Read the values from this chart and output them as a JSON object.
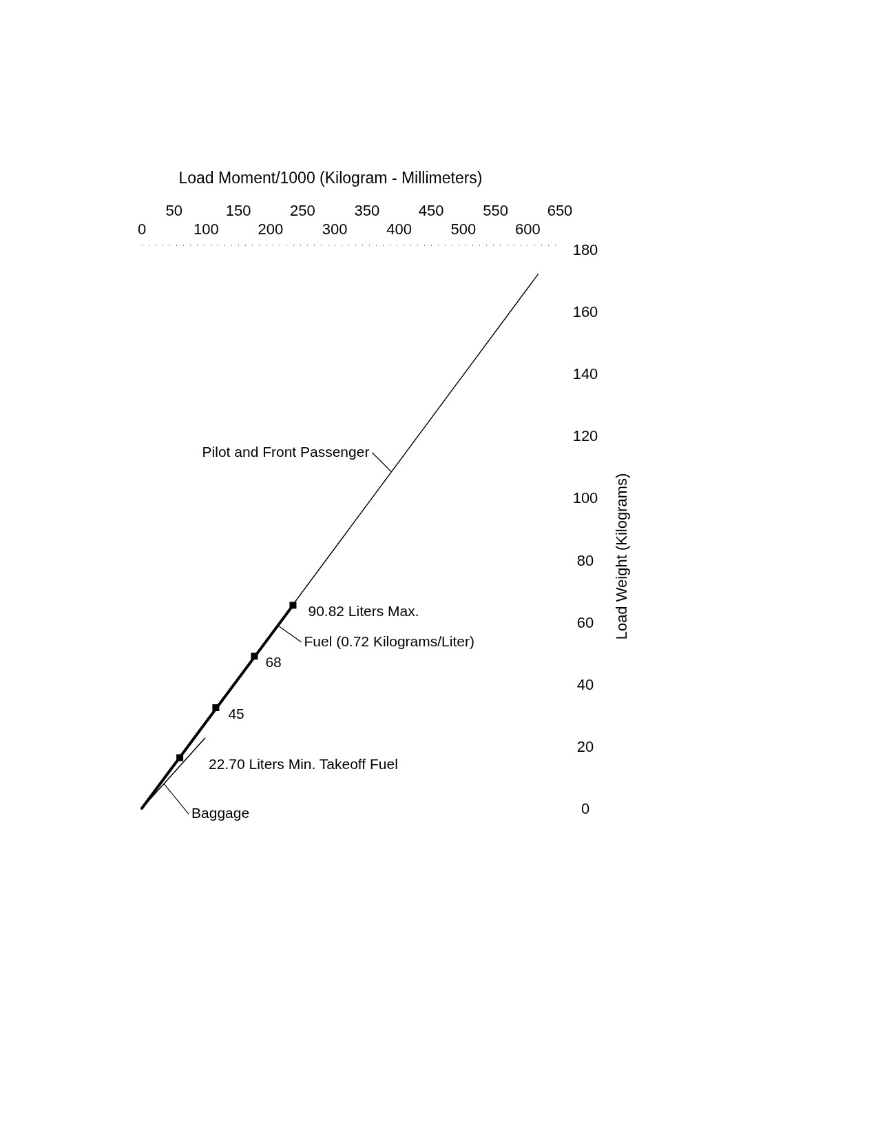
{
  "chart_data": {
    "type": "line",
    "xlabel": "Load Moment/1000 (Kilogram - Millimeters)",
    "ylabel": "Load Weight (Kilograms)",
    "xlim": [
      0,
      650
    ],
    "xticks": [
      0,
      100,
      200,
      300,
      400,
      500,
      600
    ],
    "x2lim": [
      0,
      650
    ],
    "x2ticks": [
      50,
      150,
      250,
      350,
      450,
      550,
      650
    ],
    "ylim": [
      0,
      180
    ],
    "yticks": [
      0,
      20,
      40,
      60,
      80,
      100,
      120,
      140,
      160,
      180
    ],
    "series": [
      {
        "name": "Pilot and Front Passenger",
        "type": "line",
        "color": "#000000",
        "x": [
          0,
          616
        ],
        "values": [
          0,
          172
        ]
      },
      {
        "name": "Fuel (0.72 Kilograms/Liter)",
        "type": "line",
        "color": "#000000",
        "x": [
          0,
          235
        ],
        "values": [
          0,
          65.4
        ]
      },
      {
        "name": "Baggage",
        "type": "line",
        "color": "#000000",
        "x": [
          0,
          98
        ],
        "values": [
          0,
          22.6
        ]
      },
      {
        "type": "scatter",
        "color": "#000000",
        "marker": "square",
        "x": [
          59,
          115,
          175,
          235
        ],
        "values": [
          16.3,
          32.4,
          49,
          65.4
        ]
      }
    ],
    "annotations": [
      {
        "text": "22.70 Liters Min. Takeoff Fuel",
        "x": 59,
        "y": 16.3
      },
      {
        "text": "45",
        "x": 115,
        "y": 32.4
      },
      {
        "text": "68",
        "x": 175,
        "y": 49
      },
      {
        "text": "90.82 Liters Max.",
        "x": 235,
        "y": 65.4
      }
    ]
  }
}
